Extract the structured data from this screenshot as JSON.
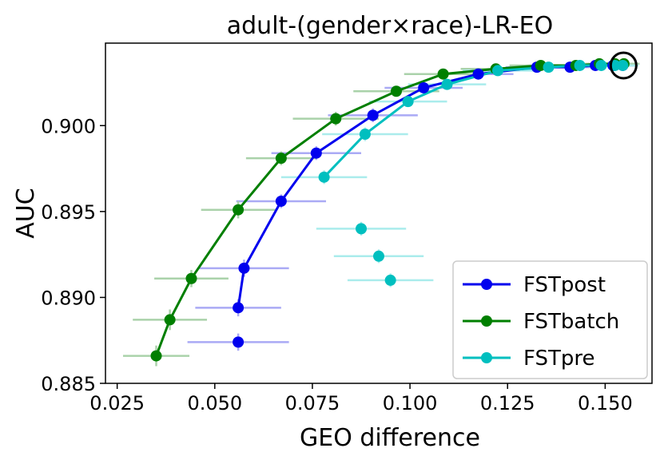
{
  "chart_data": {
    "type": "scatter",
    "title": "adult-(gender×race)-LR-EO",
    "xlabel": "GEO difference",
    "ylabel": "AUC",
    "xlim": [
      0.022,
      0.162
    ],
    "ylim": [
      0.885,
      0.9048
    ],
    "xticks": [
      {
        "value": 0.025,
        "label": "0.025"
      },
      {
        "value": 0.05,
        "label": "0.050"
      },
      {
        "value": 0.075,
        "label": "0.075"
      },
      {
        "value": 0.1,
        "label": "0.100"
      },
      {
        "value": 0.125,
        "label": "0.125"
      },
      {
        "value": 0.15,
        "label": "0.150"
      }
    ],
    "yticks": [
      {
        "value": 0.885,
        "label": "0.885"
      },
      {
        "value": 0.89,
        "label": "0.890"
      },
      {
        "value": 0.895,
        "label": "0.895"
      },
      {
        "value": 0.9,
        "label": "0.900"
      }
    ],
    "legend_position": "lower-right",
    "highlight": {
      "x": 0.1547,
      "y": 0.9035
    },
    "series": [
      {
        "name": "FSTpost",
        "color": "#0000ee",
        "err_color": "#aaaaf5",
        "line": true,
        "line_from": 1,
        "points": [
          {
            "x": 0.056,
            "y": 0.8874,
            "xerr": 0.013,
            "yerr": 0.0005
          },
          {
            "x": 0.056,
            "y": 0.8894,
            "xerr": 0.011,
            "yerr": 0.0005
          },
          {
            "x": 0.0575,
            "y": 0.8917,
            "xerr": 0.0115,
            "yerr": 0.0005
          },
          {
            "x": 0.067,
            "y": 0.8956,
            "xerr": 0.0115,
            "yerr": 0.0004
          },
          {
            "x": 0.076,
            "y": 0.8984,
            "xerr": 0.0115,
            "yerr": 0.0004
          },
          {
            "x": 0.0905,
            "y": 0.9006,
            "xerr": 0.0115,
            "yerr": 0.0004
          },
          {
            "x": 0.1035,
            "y": 0.9022,
            "xerr": 0.01,
            "yerr": 0.0003
          },
          {
            "x": 0.1175,
            "y": 0.903,
            "xerr": 0.009,
            "yerr": 0.0003
          },
          {
            "x": 0.1325,
            "y": 0.9034,
            "xerr": 0.008,
            "yerr": 0.0002
          },
          {
            "x": 0.141,
            "y": 0.9034,
            "xerr": 0.007,
            "yerr": 0.0002
          },
          {
            "x": 0.1475,
            "y": 0.9035,
            "xerr": 0.006,
            "yerr": 0.0002
          },
          {
            "x": 0.152,
            "y": 0.9035,
            "xerr": 0.005,
            "yerr": 0.0002
          },
          {
            "x": 0.1545,
            "y": 0.9035,
            "xerr": 0.004,
            "yerr": 0.0002
          }
        ]
      },
      {
        "name": "FSTbatch",
        "color": "#007f00",
        "err_color": "#aad2aa",
        "line": true,
        "line_from": 0,
        "points": [
          {
            "x": 0.035,
            "y": 0.8866,
            "xerr": 0.0085,
            "yerr": 0.0006
          },
          {
            "x": 0.0385,
            "y": 0.8887,
            "xerr": 0.0095,
            "yerr": 0.0006
          },
          {
            "x": 0.044,
            "y": 0.8911,
            "xerr": 0.0095,
            "yerr": 0.0005
          },
          {
            "x": 0.056,
            "y": 0.8951,
            "xerr": 0.0095,
            "yerr": 0.0005
          },
          {
            "x": 0.067,
            "y": 0.8981,
            "xerr": 0.009,
            "yerr": 0.0004
          },
          {
            "x": 0.081,
            "y": 0.9004,
            "xerr": 0.011,
            "yerr": 0.0004
          },
          {
            "x": 0.0965,
            "y": 0.902,
            "xerr": 0.011,
            "yerr": 0.0003
          },
          {
            "x": 0.1085,
            "y": 0.903,
            "xerr": 0.01,
            "yerr": 0.0003
          },
          {
            "x": 0.122,
            "y": 0.9033,
            "xerr": 0.009,
            "yerr": 0.0002
          },
          {
            "x": 0.1335,
            "y": 0.9035,
            "xerr": 0.008,
            "yerr": 0.0002
          },
          {
            "x": 0.1425,
            "y": 0.9035,
            "xerr": 0.007,
            "yerr": 0.0002
          },
          {
            "x": 0.1485,
            "y": 0.9036,
            "xerr": 0.006,
            "yerr": 0.0002
          },
          {
            "x": 0.1525,
            "y": 0.9036,
            "xerr": 0.005,
            "yerr": 0.0002
          },
          {
            "x": 0.1548,
            "y": 0.9036,
            "xerr": 0.004,
            "yerr": 0.0002
          }
        ]
      },
      {
        "name": "FSTpre",
        "color": "#00bfbf",
        "err_color": "#aaecec",
        "line": true,
        "line_from": 3,
        "points": [
          {
            "x": 0.095,
            "y": 0.891,
            "xerr": 0.011,
            "yerr": 0.0004
          },
          {
            "x": 0.092,
            "y": 0.8924,
            "xerr": 0.0115,
            "yerr": 0.0004
          },
          {
            "x": 0.0875,
            "y": 0.894,
            "xerr": 0.0115,
            "yerr": 0.0004
          },
          {
            "x": 0.078,
            "y": 0.897,
            "xerr": 0.011,
            "yerr": 0.0004
          },
          {
            "x": 0.0885,
            "y": 0.8995,
            "xerr": 0.011,
            "yerr": 0.0004
          },
          {
            "x": 0.0995,
            "y": 0.9014,
            "xerr": 0.01,
            "yerr": 0.0003
          },
          {
            "x": 0.1095,
            "y": 0.9024,
            "xerr": 0.01,
            "yerr": 0.0003
          },
          {
            "x": 0.1225,
            "y": 0.9032,
            "xerr": 0.009,
            "yerr": 0.0002
          },
          {
            "x": 0.1355,
            "y": 0.9034,
            "xerr": 0.008,
            "yerr": 0.0002
          },
          {
            "x": 0.1435,
            "y": 0.9035,
            "xerr": 0.007,
            "yerr": 0.0002
          },
          {
            "x": 0.149,
            "y": 0.9035,
            "xerr": 0.006,
            "yerr": 0.0002
          },
          {
            "x": 0.1525,
            "y": 0.9035,
            "xerr": 0.005,
            "yerr": 0.0002
          },
          {
            "x": 0.1545,
            "y": 0.9035,
            "xerr": 0.004,
            "yerr": 0.0002
          }
        ]
      }
    ]
  }
}
